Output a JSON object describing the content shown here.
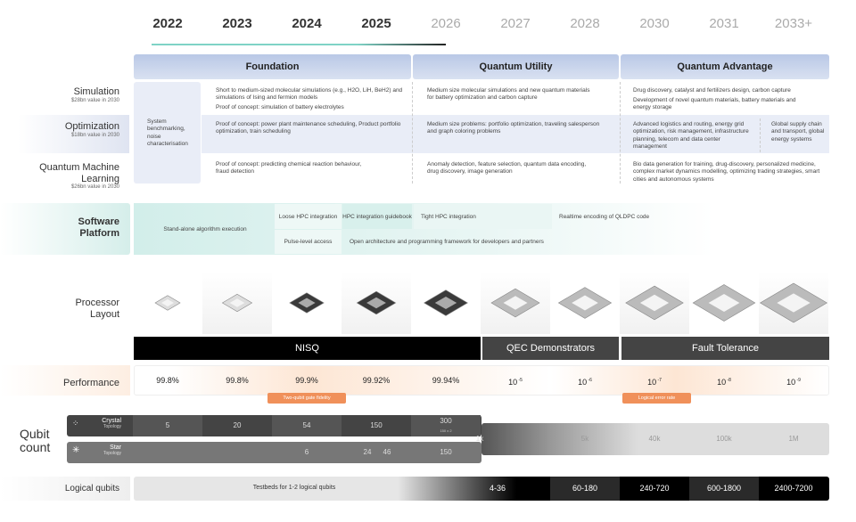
{
  "years": [
    "2022",
    "2023",
    "2024",
    "2025",
    "2026",
    "2027",
    "2028",
    "2030",
    "2031",
    "2033+"
  ],
  "phases": [
    "Foundation",
    "Quantum Utility",
    "Quantum Advantage"
  ],
  "applications": {
    "simulation": {
      "label": "Simulation",
      "value": "$28bn value in 2030",
      "foundation": "Short to medium-sized molecular simulations (e.g., H2O, LiH, BeH2) and simulations of Ising and fermion models",
      "foundation2": "Proof of concept: simulation of battery electrolytes",
      "utility": "Medium size molecular simulations and new quantum materials for battery optimization and carbon capture",
      "advantage": "Drug discovery, catalyst and fertilizers design, carbon capture",
      "advantage2": "Development of novel quantum materials, battery materials and energy storage"
    },
    "optimization": {
      "label": "Optimization",
      "value": "$18bn value in 2030",
      "foundation": "Proof of concept: power plant maintenance scheduling, Product portfolio optimization, train scheduling",
      "utility": "Medium size problems: portfolio optimization, traveling salesperson and graph coloring problems",
      "advantage": "Advanced logistics and routing, energy grid optimization, risk management, infrastructure planning, telecom and data center management",
      "advantage2": "Global supply chain and transport, global energy systems"
    },
    "qml": {
      "label": "Quantum Machine Learning",
      "value": "$26bn value in 2030",
      "foundation": "Proof of concept:  predicting chemical reaction behaviour, fraud detection",
      "utility": "Anomaly detection, feature selection, quantum data encoding, drug discovery, image generation",
      "advantage": "Bio data generation for training, drug-discovery, personalized medicine, complex market dynamics modelling, optimizing trading strategies, smart cities and autonomous systems"
    },
    "benchmarking": "System benchmarking, noise characterisation"
  },
  "software": {
    "label": "Software Platform",
    "items": [
      "Stand-alone algorithm execution",
      "Loose HPC integration",
      "HPC integration guidebook",
      "Tight HPC integration",
      "Realtime encoding of QLDPC code",
      "Pulse-level access",
      "Open architecture and programming framework for developers and partners"
    ]
  },
  "processor_label": "Processor Layout",
  "eras": [
    "NISQ",
    "QEC Demonstrators",
    "Fault Tolerance"
  ],
  "performance": {
    "label": "Performance",
    "values": [
      "99.8%",
      "99.8%",
      "99.9%",
      "99.92%",
      "99.94%",
      "10 -5",
      "10 -6",
      "10 -7",
      "10 -8",
      "10 -9"
    ],
    "tag1": "Two-qubit gate fidelity",
    "tag2": "Logical error rate"
  },
  "qubits": {
    "label": "Qubit count",
    "crystal": {
      "name": "Crystal",
      "sub": "Topology",
      "values": [
        "5",
        "20",
        "54",
        "150",
        "300"
      ],
      "note": "150 x 2"
    },
    "star": {
      "name": "Star",
      "sub": "Topology",
      "values": [
        "6",
        "24",
        "46",
        "150"
      ]
    },
    "merged": [
      "1k",
      "5k",
      "40k",
      "100k",
      "1M"
    ]
  },
  "logical": {
    "label": "Logical qubits",
    "testbeds": "Testbeds for 1-2 logical qubits",
    "values": [
      "4-36",
      "60-180",
      "240-720",
      "600-1800",
      "2400-7200"
    ]
  }
}
